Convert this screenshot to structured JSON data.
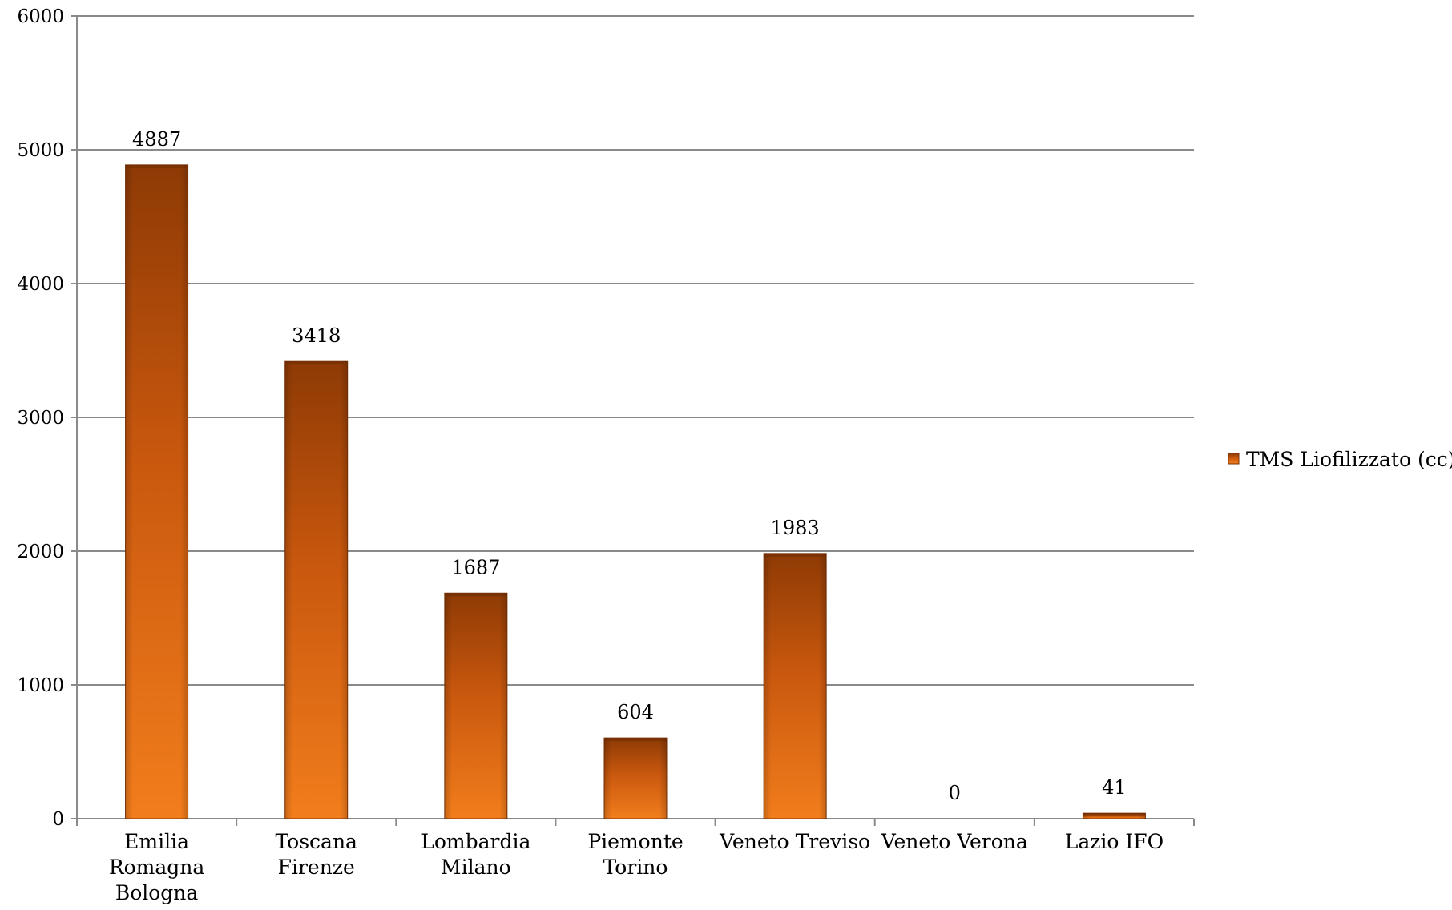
{
  "chart_data": {
    "type": "bar",
    "categories": [
      [
        "Emilia",
        "Romagna",
        "Bologna"
      ],
      [
        "Toscana",
        "Firenze"
      ],
      [
        "Lombardia",
        "Milano"
      ],
      [
        "Piemonte",
        "Torino"
      ],
      [
        "Veneto Treviso"
      ],
      [
        "Veneto Verona"
      ],
      [
        "Lazio IFO"
      ]
    ],
    "series": [
      {
        "name": "TMS Liofilizzato (cc)",
        "values": [
          4887,
          3418,
          1687,
          604,
          1983,
          0,
          41
        ],
        "color": "#e8741a"
      }
    ],
    "data_labels": [
      "4887",
      "3418",
      "1687",
      "604",
      "1983",
      "0",
      "41"
    ],
    "y_ticks": [
      0,
      1000,
      2000,
      3000,
      4000,
      5000,
      6000
    ],
    "ylim": [
      0,
      6000
    ],
    "grid": true,
    "legend_position": "right",
    "title": "",
    "xlabel": "",
    "ylabel": ""
  }
}
